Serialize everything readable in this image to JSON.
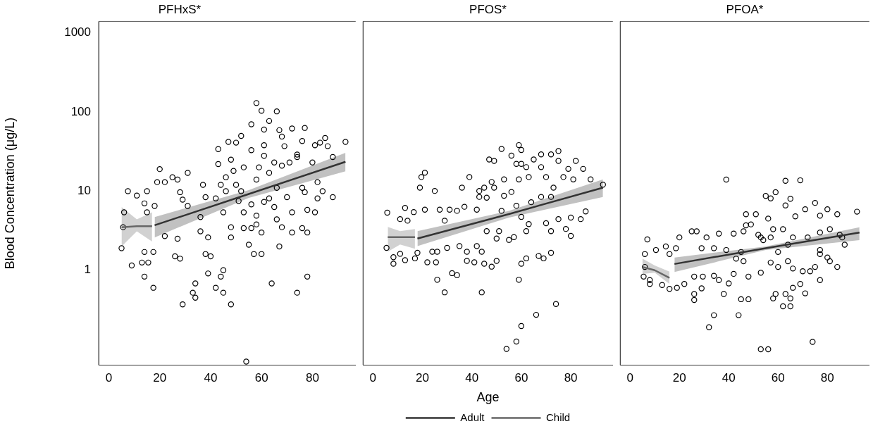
{
  "chart_data": [
    {
      "type": "scatter",
      "title": "PFHxS*",
      "ylabel": "Blood Concentration (μg/L)",
      "xlim": [
        -4,
        97
      ],
      "xticks": [
        0,
        20,
        40,
        60,
        80
      ],
      "ylim": [
        0.063,
        1400
      ],
      "yticks": [
        1,
        10,
        100,
        1000
      ],
      "log": "y",
      "grid": false,
      "marker": "circle",
      "series": [
        {
          "color": "#000000",
          "x": [
            58,
            60,
            66,
            56,
            63,
            61,
            72,
            77,
            52,
            47,
            50,
            43,
            56,
            67,
            68,
            76,
            83,
            85,
            86,
            93,
            81,
            43,
            48,
            49,
            53,
            61,
            61,
            69,
            74,
            80,
            88,
            20,
            25,
            31,
            27,
            22,
            19,
            15,
            7.5,
            11,
            14,
            18,
            15,
            6,
            28,
            29,
            37,
            38,
            42,
            44,
            46,
            46,
            45,
            48,
            48,
            53,
            53,
            56,
            58,
            58,
            60,
            57,
            60,
            55,
            58,
            63,
            65,
            66,
            68,
            72,
            67,
            72,
            76,
            78,
            77,
            82,
            84,
            88,
            78,
            82,
            81,
            76,
            5,
            9,
            14,
            17.5,
            13,
            15.5,
            14,
            17.5,
            26,
            28,
            36,
            39,
            38,
            40,
            39,
            44,
            45,
            34,
            33,
            34,
            42,
            45,
            29,
            48,
            64,
            78,
            74,
            54,
            22,
            27,
            36,
            31,
            52,
            50,
            59,
            65,
            68,
            71,
            74,
            63,
            66,
            70,
            61,
            56,
            51,
            5.6
          ],
          "values": [
            130,
            104,
            102,
            70,
            77,
            60,
            62,
            63,
            50,
            42,
            41,
            34,
            33,
            59,
            49,
            43,
            41,
            47,
            37,
            42,
            38,
            22,
            25,
            18,
            20,
            38,
            28,
            37,
            29,
            23,
            27,
            19,
            15,
            17,
            14,
            13,
            13,
            10,
            10,
            8.8,
            7,
            6.5,
            5.4,
            5.4,
            9.7,
            7.8,
            12,
            8.4,
            8.1,
            12,
            15,
            10,
            5.4,
            3.5,
            2.6,
            5.4,
            3.4,
            3.4,
            4.9,
            3.8,
            3,
            1.6,
            1.6,
            2.1,
            14,
            8.1,
            6.3,
            4.4,
            3.5,
            3,
            2,
            5.4,
            3.4,
            3,
            9.7,
            8.1,
            10,
            8.4,
            5.8,
            13,
            5.4,
            11,
            1.9,
            1.15,
            1.7,
            1.7,
            1.25,
            1.25,
            0.83,
            0.6,
            1.5,
            1.4,
            3.1,
            2.6,
            1.6,
            1.5,
            0.91,
            0.83,
            1,
            0.68,
            0.52,
            0.45,
            0.6,
            0.52,
            0.37,
            0.37,
            0.68,
            0.83,
            0.52,
            0.07,
            2.7,
            2.5,
            4.7,
            6.5,
            10,
            12,
            20,
            23,
            21,
            23,
            27,
            17,
            11,
            8.4,
            7.3,
            6.8,
            7.5,
            3.5
          ]
        },
        {
          "type": "line",
          "marker": "none",
          "color": "#333333",
          "x": [
            18,
            55,
            93
          ],
          "values": [
            3.7,
            9.2,
            23.5
          ],
          "lower": [
            2.6,
            8.2,
            17.8
          ],
          "upper": [
            4.7,
            10.3,
            30.6
          ]
        },
        {
          "type": "line",
          "marker": "none",
          "color": "#666666",
          "x": [
            5,
            11,
            17
          ],
          "values": [
            3.5,
            3.6,
            3.6
          ],
          "lower": [
            2,
            3.1,
            2.3
          ],
          "upper": [
            6.3,
            4.4,
            5.4
          ]
        }
      ],
      "tick_labels": "xy"
    },
    {
      "type": "scatter",
      "title": "PFOS*",
      "xlabel": "Age",
      "xlim": [
        -4,
        97
      ],
      "xticks": [
        0,
        20,
        40,
        60,
        80
      ],
      "ylim": [
        0.063,
        1400
      ],
      "yticks": [
        1,
        10,
        100,
        1000
      ],
      "log": "y",
      "grid": false,
      "marker": "circle",
      "legend": "bottom",
      "tick_labels": "x",
      "series": [
        {
          "color": "#000000",
          "x": [
            59,
            52,
            60,
            47,
            49,
            56,
            58,
            60,
            62,
            65,
            68,
            72,
            75,
            75,
            82,
            85,
            88,
            93,
            79,
            77,
            81,
            68,
            70,
            21,
            19.6,
            19,
            25,
            39,
            36,
            43,
            45,
            49,
            48,
            53,
            59,
            63,
            53,
            56,
            43,
            46,
            5.8,
            13,
            16.5,
            21,
            27,
            31,
            34,
            37,
            42,
            11,
            14,
            29,
            52,
            58,
            62,
            75,
            80,
            84,
            86,
            78,
            80,
            70,
            72,
            72,
            69,
            67,
            62,
            60,
            57,
            55,
            50,
            44,
            45,
            41,
            38,
            35,
            42,
            38,
            30,
            26,
            24,
            22,
            25.5,
            18,
            17,
            13,
            11,
            8.3,
            8.3,
            5.5,
            48,
            50,
            32,
            34,
            26,
            29,
            44,
            59,
            74,
            66,
            60,
            58,
            54,
            46,
            51,
            60,
            64,
            68,
            72,
            73,
            63
          ],
          "values": [
            38,
            34,
            33,
            25,
            24,
            28,
            22,
            22,
            20,
            25,
            29,
            29,
            32,
            24,
            24,
            19,
            14,
            12,
            19,
            15,
            14,
            20,
            15,
            17,
            15,
            11,
            10,
            15,
            11,
            10,
            11,
            11,
            13,
            14,
            14,
            15,
            8.7,
            9.7,
            8.4,
            8.2,
            5.3,
            6.1,
            5.4,
            5.8,
            5.8,
            5.8,
            5.6,
            6.3,
            5.8,
            4.4,
            4.2,
            4.2,
            5.6,
            6.5,
            3.1,
            4.4,
            4.6,
            4.4,
            5.5,
            3.3,
            2.7,
            3.9,
            3.1,
            1.65,
            1.4,
            1.5,
            1.4,
            1.2,
            2.6,
            2.4,
            2.5,
            1.7,
            1.2,
            1.25,
            1.3,
            2,
            2,
            1.7,
            1.9,
            1.7,
            1.7,
            1.25,
            1.25,
            1.65,
            1.4,
            1.33,
            1.6,
            1.2,
            1.45,
            1.9,
            1.1,
            1.3,
            0.91,
            0.86,
            0.75,
            0.52,
            0.52,
            0.75,
            0.37,
            0.27,
            0.195,
            0.124,
            0.1,
            3.1,
            3.1,
            4.7,
            7.2,
            8.4,
            8.4,
            11,
            3.8
          ]
        },
        {
          "type": "line",
          "marker": "none",
          "name": "Adult",
          "color": "#333333",
          "x": [
            18,
            55,
            93
          ],
          "values": [
            2.5,
            5.1,
            11
          ],
          "lower": [
            2,
            4.6,
            8.4
          ],
          "upper": [
            3.1,
            5.6,
            14
          ]
        },
        {
          "type": "line",
          "marker": "none",
          "name": "Child",
          "color": "#666666",
          "x": [
            6,
            11,
            17
          ],
          "values": [
            2.6,
            2.6,
            2.6
          ],
          "lower": [
            1.7,
            2.1,
            1.85
          ],
          "upper": [
            3.5,
            3.1,
            3.3
          ]
        }
      ]
    },
    {
      "type": "scatter",
      "title": "PFOA*",
      "xlim": [
        -4,
        97
      ],
      "xticks": [
        0,
        20,
        40,
        60,
        80
      ],
      "ylim": [
        0.063,
        1400
      ],
      "yticks": [
        1,
        10,
        100,
        1000
      ],
      "log": "y",
      "grid": false,
      "marker": "circle",
      "tick_labels": "x",
      "series": [
        {
          "color": "#000000",
          "x": [
            39,
            63,
            69,
            55,
            59,
            57,
            65,
            63,
            75,
            80,
            84,
            92,
            71,
            47,
            51,
            56,
            67,
            77,
            49,
            47,
            42,
            46,
            36,
            25,
            27,
            20,
            31,
            7,
            10.5,
            14.5,
            16,
            18.6,
            29,
            34,
            39,
            43,
            45,
            52,
            54,
            57,
            62,
            66,
            72,
            77,
            81,
            85,
            86,
            87,
            77,
            80,
            81,
            84,
            77,
            75,
            70,
            73,
            66,
            64,
            60,
            57,
            53,
            48,
            46,
            42,
            36,
            34,
            29.5,
            26,
            22,
            19,
            16,
            13,
            8,
            5.5,
            6,
            6,
            8,
            29,
            26,
            26,
            38,
            40,
            45,
            48,
            58,
            59,
            62,
            63,
            65,
            65,
            69,
            71,
            66,
            77,
            34,
            32,
            44,
            74,
            53,
            56,
            53,
            60,
            64,
            58
          ],
          "values": [
            14,
            13.5,
            13.7,
            8.7,
            9.7,
            8.1,
            8,
            6.6,
            7.1,
            5.9,
            5.1,
            5.5,
            5.9,
            5.1,
            5.1,
            4.5,
            4.8,
            4.9,
            3.8,
            3.7,
            2.9,
            3.1,
            2.9,
            3.1,
            3.1,
            2.6,
            2.6,
            2.45,
            1.8,
            2,
            1.6,
            1.9,
            1.9,
            1.9,
            1.8,
            1.4,
            1.7,
            2.8,
            2.4,
            2.6,
            3.3,
            2.6,
            2.6,
            3,
            3.3,
            2.8,
            2.6,
            2.1,
            1.8,
            1.45,
            1.3,
            1.1,
            1.6,
            1.1,
            0.97,
            0.97,
            1.05,
            1.3,
            1.1,
            1.25,
            0.93,
            0.83,
            1.3,
            0.9,
            0.75,
            0.85,
            0.83,
            0.83,
            0.67,
            0.6,
            0.58,
            0.65,
            0.67,
            0.83,
            1.1,
            1.6,
            0.75,
            0.59,
            0.5,
            0.42,
            0.5,
            0.68,
            0.43,
            0.43,
            0.44,
            0.5,
            0.35,
            0.5,
            0.44,
            0.35,
            0.67,
            0.51,
            0.6,
            0.75,
            0.27,
            0.19,
            0.27,
            0.124,
            0.1,
            0.1,
            2.6,
            1.7,
            2.1,
            3.3
          ]
        },
        {
          "type": "line",
          "marker": "none",
          "color": "#333333",
          "x": [
            18,
            55,
            93
          ],
          "values": [
            1.2,
            1.9,
            3
          ],
          "lower": [
            0.95,
            1.8,
            2.4
          ],
          "upper": [
            1.45,
            2,
            3.5
          ]
        },
        {
          "type": "line",
          "marker": "none",
          "color": "#666666",
          "x": [
            5,
            10,
            16
          ],
          "values": [
            1.1,
            1,
            0.8
          ],
          "lower": [
            0.9,
            0.93,
            0.67
          ],
          "upper": [
            1.4,
            1.15,
            0.96
          ]
        }
      ]
    }
  ]
}
